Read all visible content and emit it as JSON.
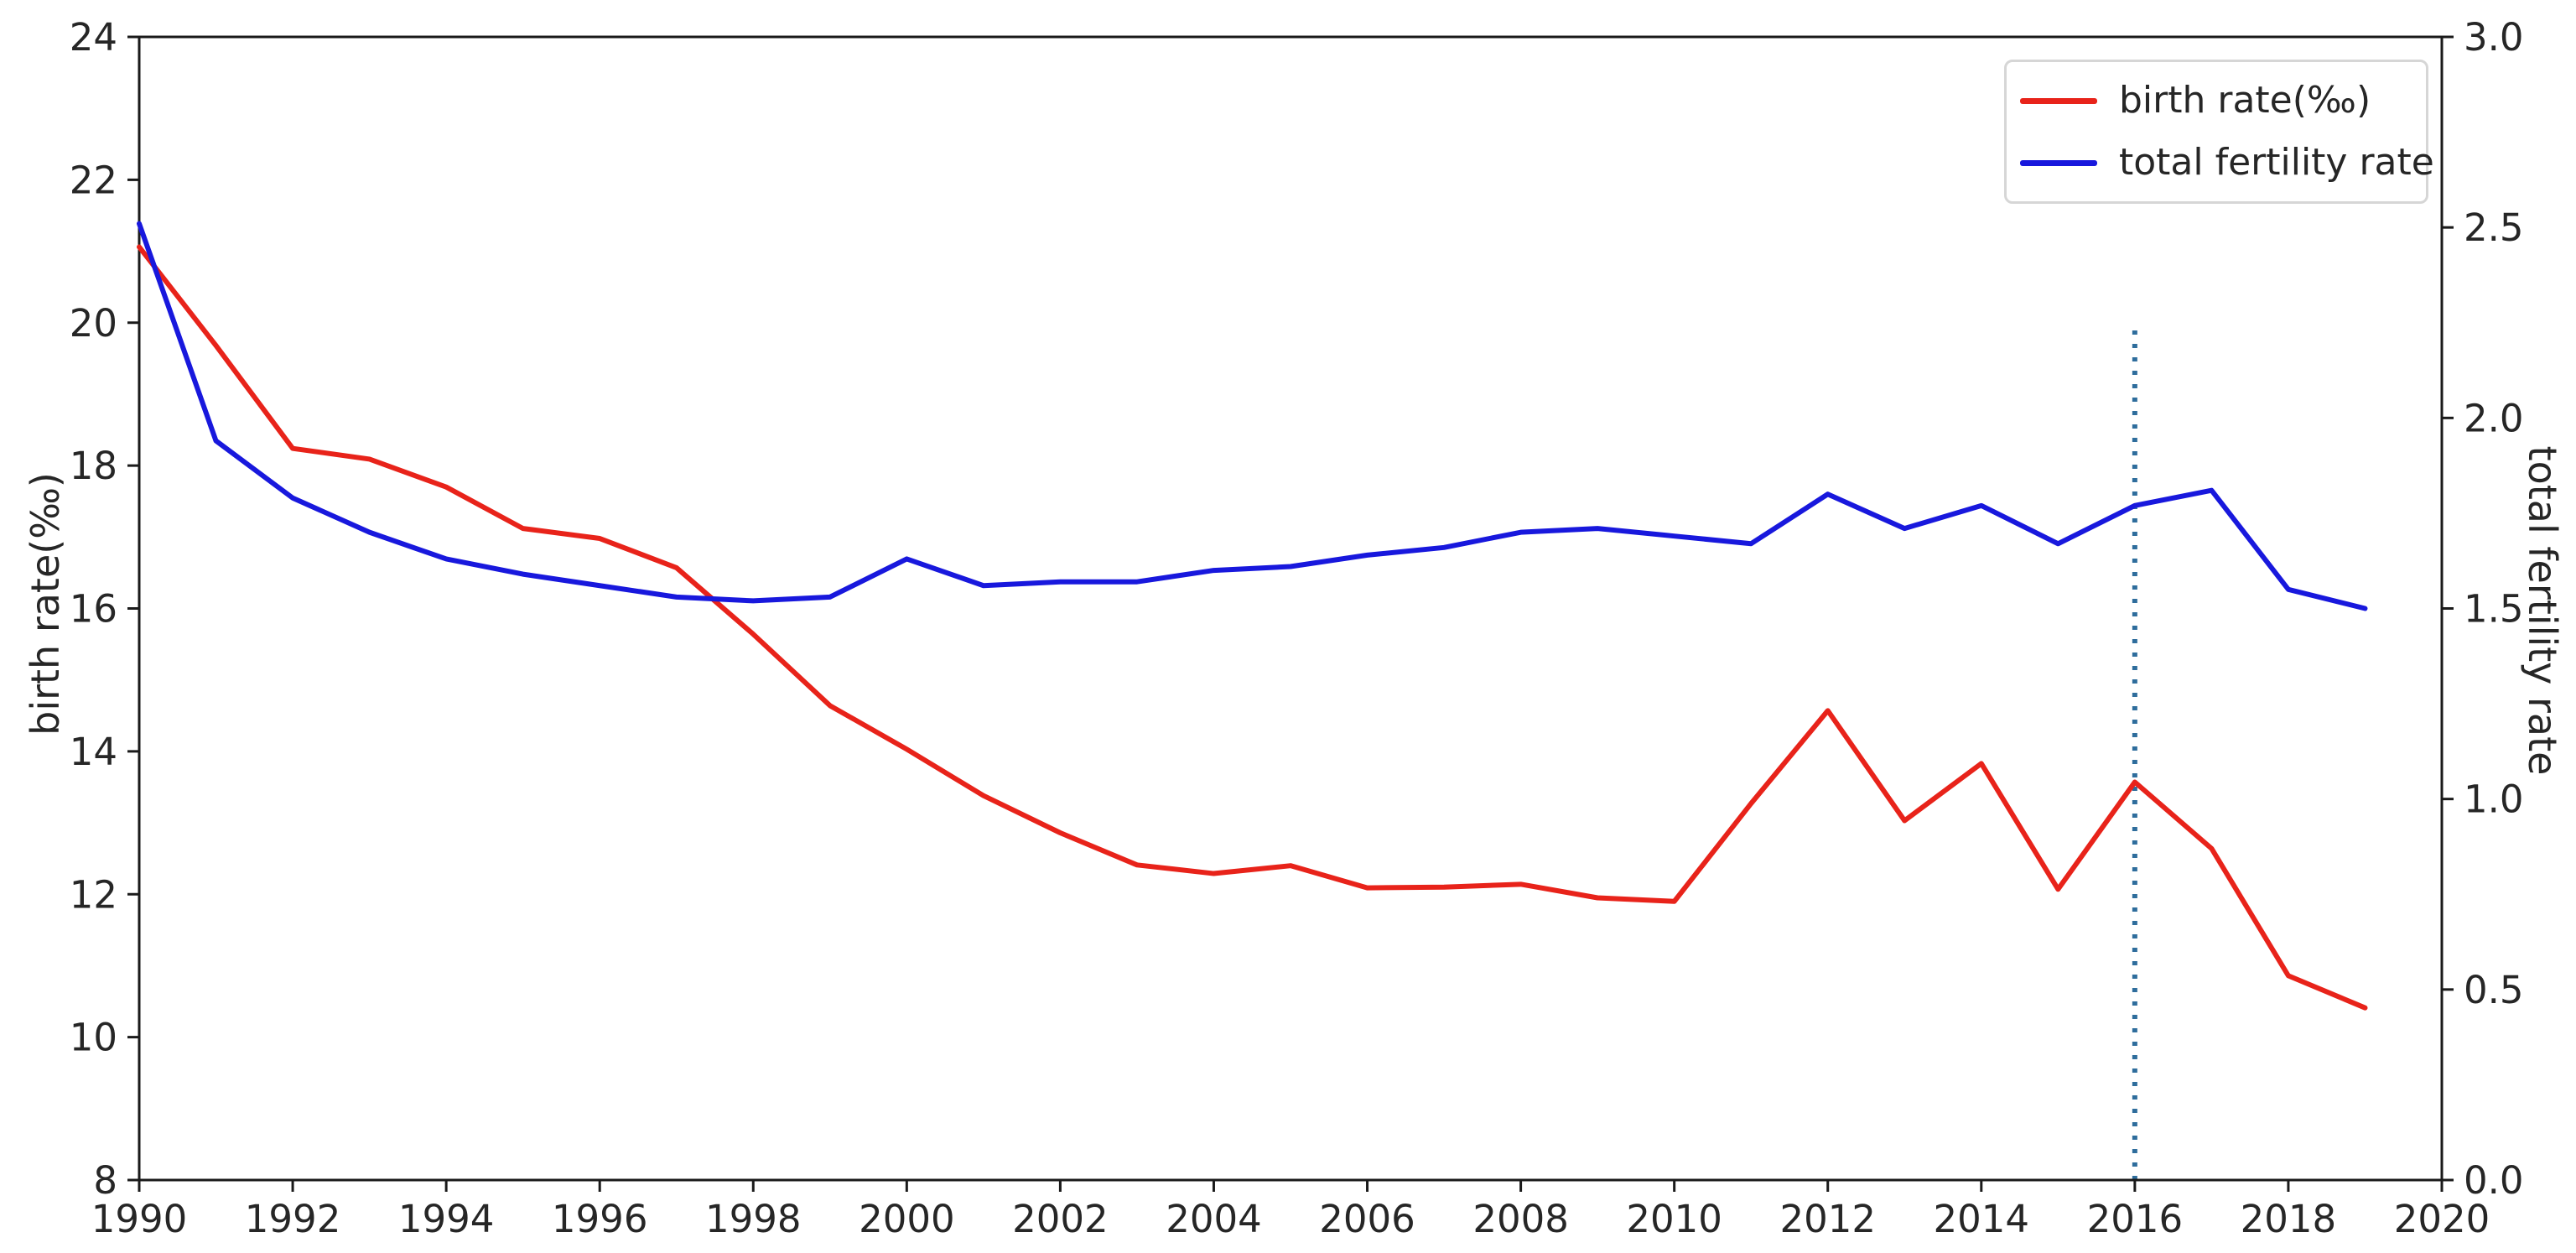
{
  "chart_data": {
    "type": "line",
    "title": "",
    "x": [
      1990,
      1991,
      1992,
      1993,
      1994,
      1995,
      1996,
      1997,
      1998,
      1999,
      2000,
      2001,
      2002,
      2003,
      2004,
      2005,
      2006,
      2007,
      2008,
      2009,
      2010,
      2011,
      2012,
      2013,
      2014,
      2015,
      2016,
      2017,
      2018,
      2019
    ],
    "series": [
      {
        "name": "birth rate(‰)",
        "axis": "left",
        "color": "#e8231a",
        "values": [
          21.06,
          19.68,
          18.24,
          18.09,
          17.7,
          17.12,
          16.98,
          16.57,
          15.64,
          14.64,
          14.03,
          13.38,
          12.86,
          12.41,
          12.29,
          12.4,
          12.09,
          12.1,
          12.14,
          11.95,
          11.9,
          13.27,
          14.57,
          13.03,
          13.83,
          12.07,
          13.57,
          12.64,
          10.86,
          10.41
        ]
      },
      {
        "name": "total fertility rate",
        "axis": "right",
        "color": "#1818dd",
        "values": [
          2.51,
          1.94,
          1.79,
          1.7,
          1.63,
          1.59,
          1.56,
          1.53,
          1.52,
          1.53,
          1.63,
          1.56,
          1.57,
          1.57,
          1.6,
          1.61,
          1.64,
          1.66,
          1.7,
          1.71,
          1.69,
          1.67,
          1.8,
          1.71,
          1.77,
          1.67,
          1.77,
          1.81,
          1.55,
          1.5
        ]
      }
    ],
    "x_axis": {
      "min": 1990,
      "max": 2020,
      "ticks": [
        1990,
        1992,
        1994,
        1996,
        1998,
        2000,
        2002,
        2004,
        2006,
        2008,
        2010,
        2012,
        2014,
        2016,
        2018,
        2020
      ]
    },
    "left_axis": {
      "label": "birth rate(‰)",
      "min": 8,
      "max": 24,
      "ticks": [
        8,
        10,
        12,
        14,
        16,
        18,
        20,
        22,
        24
      ]
    },
    "right_axis": {
      "label": "total fertility rate",
      "min": 0.0,
      "max": 3.0,
      "ticks": [
        0.0,
        0.5,
        1.0,
        1.5,
        2.0,
        2.5,
        3.0
      ],
      "tick_labels": [
        "0.0",
        "0.5",
        "1.0",
        "1.5",
        "2.0",
        "2.5",
        "3.0"
      ]
    },
    "annotations": [
      {
        "type": "vline",
        "x": 2016,
        "y_from_left": 8,
        "y_to_left": 19.9,
        "style": "dotted",
        "color": "#2e6d9c"
      }
    ],
    "legend": {
      "position": "top-right"
    },
    "grid": false,
    "style": {
      "spine_color": "#1a1a1a",
      "text_color": "#262626",
      "legend_border_color": "#d6d6d6",
      "background": "#ffffff"
    }
  }
}
